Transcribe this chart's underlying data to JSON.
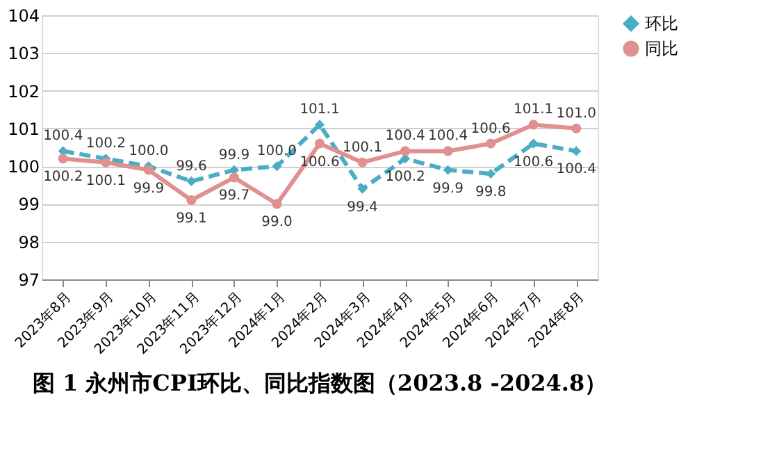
{
  "chart_data": {
    "type": "line",
    "title": "图 1  永州市CPI环比、同比指数图（2023.8 -2024.8）",
    "categories": [
      "2023年8月",
      "2023年9月",
      "2023年10月",
      "2023年11月",
      "2023年12月",
      "2024年1月",
      "2024年2月",
      "2024年3月",
      "2024年4月",
      "2024年5月",
      "2024年6月",
      "2024年7月",
      "2024年8月"
    ],
    "series": [
      {
        "name": "环比",
        "color": "#4bacc6",
        "line_style": "dashed",
        "marker": "diamond",
        "values": [
          100.4,
          100.2,
          100.0,
          99.6,
          99.9,
          100.0,
          101.1,
          99.4,
          100.2,
          99.9,
          99.8,
          100.6,
          100.4
        ],
        "value_labels": [
          "100.4",
          "100.2",
          "100.0",
          "99.6",
          "99.9",
          "100.0",
          "101.1",
          "99.4",
          "100.2",
          "99.9",
          "99.8",
          "100.6",
          "100.4"
        ]
      },
      {
        "name": "同比",
        "color": "#e0908f",
        "line_style": "solid",
        "marker": "circle",
        "values": [
          100.2,
          100.1,
          99.9,
          99.1,
          99.7,
          99.0,
          100.6,
          100.1,
          100.4,
          100.4,
          100.6,
          101.1,
          101.0
        ],
        "value_labels": [
          "100.2",
          "100.1",
          "99.9",
          "99.1",
          "99.7",
          "99.0",
          "100.6",
          "100.1",
          "100.4",
          "100.4",
          "100.6",
          "101.1",
          "101.0"
        ]
      }
    ],
    "ylim": [
      97,
      104
    ],
    "yticks": [
      97,
      98,
      99,
      100,
      101,
      102,
      103,
      104
    ],
    "grid": "y",
    "legend": "right"
  }
}
